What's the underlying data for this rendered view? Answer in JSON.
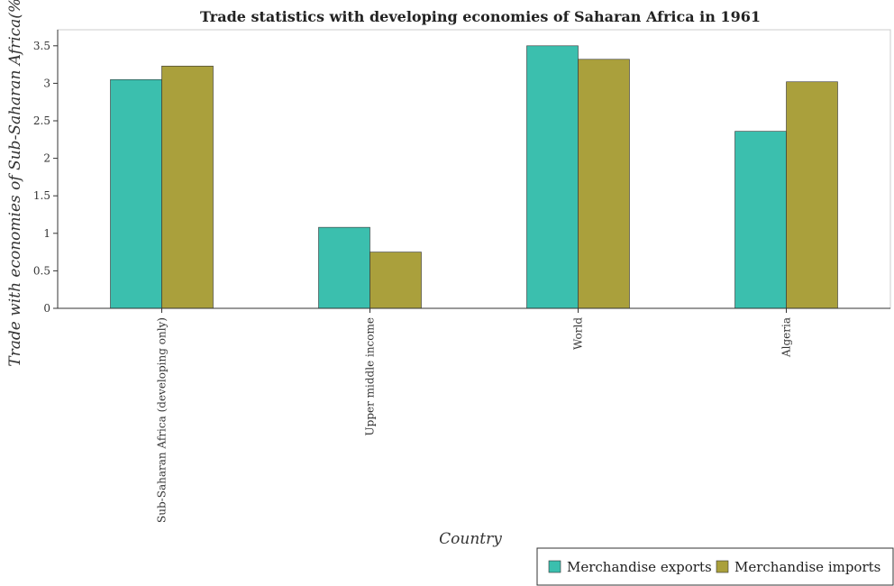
{
  "chart_data": {
    "type": "bar",
    "title": "Trade statistics with developing economies of Saharan Africa in 1961",
    "xlabel": "Country",
    "ylabel": "Trade with economies of Sub-Saharan Africa(%)",
    "categories": [
      "Sub-Saharan Africa (developing only)",
      "Upper middle income",
      "World",
      "Algeria"
    ],
    "series": [
      {
        "name": "Merchandise exports",
        "values": [
          3.05,
          1.08,
          3.5,
          2.36
        ],
        "color": "#3bbfae"
      },
      {
        "name": "Merchandise imports",
        "values": [
          3.23,
          0.75,
          3.32,
          3.02
        ],
        "color": "#aaa03c"
      }
    ],
    "yticks": [
      "0",
      "0.5",
      "1",
      "1.5",
      "2",
      "2.5",
      "3",
      "3.5"
    ],
    "ylim": [
      0,
      3.7
    ],
    "grid": false,
    "legend_position": "bottom-right"
  }
}
